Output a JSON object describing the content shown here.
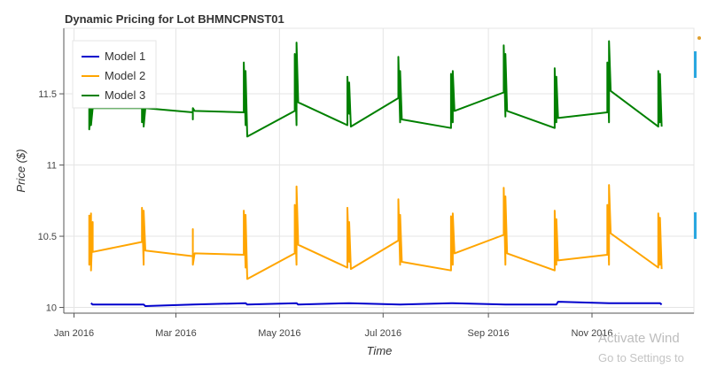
{
  "chart_data": {
    "type": "line",
    "title": "Dynamic Pricing for Lot BHMNCPNST01",
    "xlabel": "Time",
    "ylabel": "Price ($)",
    "x_range": [
      "2015-12-26",
      "2016-12-31"
    ],
    "ylim": [
      9.96,
      11.96
    ],
    "x_ticks": [
      {
        "date": "2016-01-01",
        "label": "Jan 2016"
      },
      {
        "date": "2016-03-01",
        "label": "Mar 2016"
      },
      {
        "date": "2016-05-01",
        "label": "May 2016"
      },
      {
        "date": "2016-07-01",
        "label": "Jul 2016"
      },
      {
        "date": "2016-09-01",
        "label": "Sep 2016"
      },
      {
        "date": "2016-11-01",
        "label": "Nov 2016"
      }
    ],
    "y_ticks": [
      {
        "value": 10,
        "label": "10"
      },
      {
        "value": 10.5,
        "label": "10.5"
      },
      {
        "value": 11,
        "label": "11"
      },
      {
        "value": 11.5,
        "label": "11.5"
      }
    ],
    "grid": true,
    "legend_position": "top-left",
    "legend_label_key": "legend_labels",
    "legend_labels": [
      "Model 1",
      "Model 2",
      "Model 3"
    ],
    "series": [
      {
        "name": "Model 1",
        "color": "#0000cc",
        "points": [
          [
            "2016-01-11",
            10.03
          ],
          [
            "2016-01-12",
            10.02
          ],
          [
            "2016-02-11",
            10.02
          ],
          [
            "2016-02-12",
            10.01
          ],
          [
            "2016-03-11",
            10.02
          ],
          [
            "2016-04-11",
            10.03
          ],
          [
            "2016-04-12",
            10.02
          ],
          [
            "2016-05-11",
            10.03
          ],
          [
            "2016-05-12",
            10.02
          ],
          [
            "2016-06-11",
            10.03
          ],
          [
            "2016-07-11",
            10.02
          ],
          [
            "2016-08-11",
            10.03
          ],
          [
            "2016-09-11",
            10.02
          ],
          [
            "2016-10-11",
            10.02
          ],
          [
            "2016-10-12",
            10.04
          ],
          [
            "2016-11-11",
            10.03
          ],
          [
            "2016-12-11",
            10.03
          ],
          [
            "2016-12-12",
            10.02
          ]
        ]
      },
      {
        "name": "Model 2",
        "color": "#ffa500",
        "points": [
          [
            "2016-01-10",
            10.65
          ],
          [
            "2016-01-10",
            10.3
          ],
          [
            "2016-01-11",
            10.66
          ],
          [
            "2016-01-11",
            10.26
          ],
          [
            "2016-01-12",
            10.6
          ],
          [
            "2016-01-12",
            10.39
          ],
          [
            "2016-02-10",
            10.46
          ],
          [
            "2016-02-10",
            10.7
          ],
          [
            "2016-02-11",
            10.3
          ],
          [
            "2016-02-11",
            10.68
          ],
          [
            "2016-02-12",
            10.4
          ],
          [
            "2016-03-11",
            10.36
          ],
          [
            "2016-03-11",
            10.55
          ],
          [
            "2016-03-11",
            10.3
          ],
          [
            "2016-03-12",
            10.38
          ],
          [
            "2016-04-10",
            10.37
          ],
          [
            "2016-04-10",
            10.68
          ],
          [
            "2016-04-11",
            10.28
          ],
          [
            "2016-04-11",
            10.65
          ],
          [
            "2016-04-12",
            10.2
          ],
          [
            "2016-05-10",
            10.38
          ],
          [
            "2016-05-10",
            10.72
          ],
          [
            "2016-05-11",
            10.3
          ],
          [
            "2016-05-11",
            10.85
          ],
          [
            "2016-05-12",
            10.44
          ],
          [
            "2016-06-10",
            10.28
          ],
          [
            "2016-06-10",
            10.7
          ],
          [
            "2016-06-11",
            10.32
          ],
          [
            "2016-06-11",
            10.6
          ],
          [
            "2016-06-12",
            10.27
          ],
          [
            "2016-07-10",
            10.47
          ],
          [
            "2016-07-10",
            10.76
          ],
          [
            "2016-07-11",
            10.3
          ],
          [
            "2016-07-11",
            10.65
          ],
          [
            "2016-07-12",
            10.32
          ],
          [
            "2016-08-10",
            10.26
          ],
          [
            "2016-08-10",
            10.64
          ],
          [
            "2016-08-11",
            10.3
          ],
          [
            "2016-08-11",
            10.66
          ],
          [
            "2016-08-12",
            10.38
          ],
          [
            "2016-09-10",
            10.51
          ],
          [
            "2016-09-10",
            10.84
          ],
          [
            "2016-09-11",
            10.3
          ],
          [
            "2016-09-11",
            10.78
          ],
          [
            "2016-09-12",
            10.38
          ],
          [
            "2016-10-10",
            10.26
          ],
          [
            "2016-10-10",
            10.68
          ],
          [
            "2016-10-11",
            10.3
          ],
          [
            "2016-10-11",
            10.62
          ],
          [
            "2016-10-12",
            10.33
          ],
          [
            "2016-11-10",
            10.37
          ],
          [
            "2016-11-10",
            10.72
          ],
          [
            "2016-11-11",
            10.3
          ],
          [
            "2016-11-11",
            10.86
          ],
          [
            "2016-11-12",
            10.52
          ],
          [
            "2016-12-10",
            10.28
          ],
          [
            "2016-12-10",
            10.66
          ],
          [
            "2016-12-11",
            10.3
          ],
          [
            "2016-12-11",
            10.63
          ],
          [
            "2016-12-12",
            10.27
          ]
        ]
      },
      {
        "name": "Model 3",
        "color": "#008000",
        "points": [
          [
            "2016-01-10",
            11.4
          ],
          [
            "2016-01-10",
            11.25
          ],
          [
            "2016-01-11",
            11.42
          ],
          [
            "2016-01-11",
            11.28
          ],
          [
            "2016-01-12",
            11.4
          ],
          [
            "2016-02-10",
            11.4
          ],
          [
            "2016-02-10",
            11.3
          ],
          [
            "2016-02-11",
            11.44
          ],
          [
            "2016-02-11",
            11.27
          ],
          [
            "2016-02-12",
            11.4
          ],
          [
            "2016-03-11",
            11.37
          ],
          [
            "2016-03-11",
            11.32
          ],
          [
            "2016-03-11",
            11.4
          ],
          [
            "2016-03-12",
            11.38
          ],
          [
            "2016-04-10",
            11.37
          ],
          [
            "2016-04-10",
            11.72
          ],
          [
            "2016-04-11",
            11.28
          ],
          [
            "2016-04-11",
            11.66
          ],
          [
            "2016-04-12",
            11.2
          ],
          [
            "2016-05-10",
            11.38
          ],
          [
            "2016-05-10",
            11.78
          ],
          [
            "2016-05-11",
            11.28
          ],
          [
            "2016-05-11",
            11.86
          ],
          [
            "2016-05-12",
            11.44
          ],
          [
            "2016-06-10",
            11.28
          ],
          [
            "2016-06-10",
            11.62
          ],
          [
            "2016-06-11",
            11.36
          ],
          [
            "2016-06-11",
            11.58
          ],
          [
            "2016-06-12",
            11.27
          ],
          [
            "2016-07-10",
            11.47
          ],
          [
            "2016-07-10",
            11.76
          ],
          [
            "2016-07-11",
            11.3
          ],
          [
            "2016-07-11",
            11.66
          ],
          [
            "2016-07-12",
            11.32
          ],
          [
            "2016-08-10",
            11.26
          ],
          [
            "2016-08-10",
            11.64
          ],
          [
            "2016-08-11",
            11.3
          ],
          [
            "2016-08-11",
            11.66
          ],
          [
            "2016-08-12",
            11.38
          ],
          [
            "2016-09-10",
            11.51
          ],
          [
            "2016-09-10",
            11.84
          ],
          [
            "2016-09-11",
            11.34
          ],
          [
            "2016-09-11",
            11.78
          ],
          [
            "2016-09-12",
            11.38
          ],
          [
            "2016-10-10",
            11.26
          ],
          [
            "2016-10-10",
            11.68
          ],
          [
            "2016-10-11",
            11.3
          ],
          [
            "2016-10-11",
            11.62
          ],
          [
            "2016-10-12",
            11.33
          ],
          [
            "2016-11-10",
            11.37
          ],
          [
            "2016-11-10",
            11.72
          ],
          [
            "2016-11-11",
            11.3
          ],
          [
            "2016-11-11",
            11.87
          ],
          [
            "2016-11-12",
            11.52
          ],
          [
            "2016-12-10",
            11.27
          ],
          [
            "2016-12-10",
            11.66
          ],
          [
            "2016-12-11",
            11.3
          ],
          [
            "2016-12-11",
            11.64
          ],
          [
            "2016-12-12",
            11.27
          ]
        ]
      }
    ]
  },
  "overlay": {
    "watermark_line1": "Activate Wind",
    "watermark_line2": "Go to Settings to"
  },
  "colors": {
    "grid": "#e5e5e5",
    "axis": "#555555",
    "side_mark": "#2aa7e0"
  }
}
